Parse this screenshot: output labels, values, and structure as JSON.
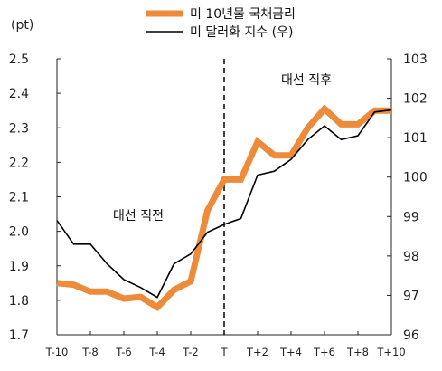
{
  "chart_data": {
    "type": "line",
    "unit_label_left": "(pt)",
    "categories": [
      "T-10",
      "T-9",
      "T-8",
      "T-7",
      "T-6",
      "T-5",
      "T-4",
      "T-3",
      "T-2",
      "T-1",
      "T",
      "T+1",
      "T+2",
      "T+3",
      "T+4",
      "T+5",
      "T+6",
      "T+7",
      "T+8",
      "T+9",
      "T+10"
    ],
    "x_tick_labels": [
      "T-10",
      "T-8",
      "T-6",
      "T-4",
      "T-2",
      "T",
      "T+2",
      "T+4",
      "T+6",
      "T+8",
      "T+10"
    ],
    "y_left": {
      "lim": [
        1.7,
        2.5
      ],
      "ticks": [
        "2.5",
        "2.4",
        "2.3",
        "2.2",
        "2.1",
        "2.0",
        "1.9",
        "1.8",
        "1.7"
      ]
    },
    "y_right": {
      "lim": [
        96,
        103
      ],
      "ticks": [
        "103",
        "102",
        "101",
        "100",
        "99",
        "98",
        "97",
        "96"
      ]
    },
    "series": [
      {
        "name": "미 10년물 국채금리",
        "axis": "left",
        "color": "#ED8B3B",
        "values": [
          1.85,
          1.845,
          1.825,
          1.825,
          1.805,
          1.81,
          1.78,
          1.83,
          1.855,
          2.06,
          2.15,
          2.15,
          2.26,
          2.22,
          2.22,
          2.3,
          2.355,
          2.31,
          2.31,
          2.35,
          2.35
        ]
      },
      {
        "name": "미 달러화 지수 (우)",
        "axis": "right",
        "color": "#000000",
        "values": [
          98.9,
          98.3,
          98.3,
          97.8,
          97.4,
          97.2,
          96.95,
          97.8,
          98.05,
          98.6,
          98.8,
          98.95,
          100.05,
          100.15,
          100.45,
          100.95,
          101.3,
          100.95,
          101.05,
          101.65,
          101.7
        ]
      }
    ],
    "vline_at": "T",
    "annotations": {
      "before": "대선 직전",
      "after": "대선 직후"
    },
    "grid": false,
    "legend": "top-center"
  }
}
